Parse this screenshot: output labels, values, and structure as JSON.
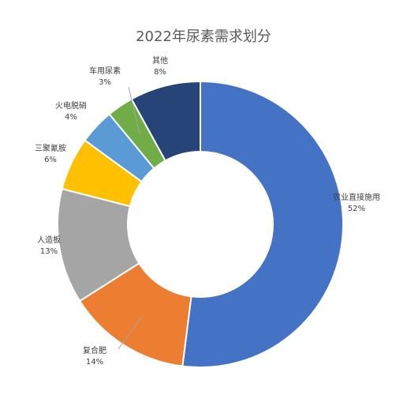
{
  "chart_data": {
    "type": "pie",
    "title": "2022年尿素需求划分",
    "donut": true,
    "slices": [
      {
        "label": "农业直接施用",
        "value": 52,
        "value_label": "52%",
        "color": "#4472C4"
      },
      {
        "label": "复合肥",
        "value": 14,
        "value_label": "14%",
        "color": "#ED7D31"
      },
      {
        "label": "人造板",
        "value": 13,
        "value_label": "13%",
        "color": "#A5A5A5"
      },
      {
        "label": "三聚氰胺",
        "value": 6,
        "value_label": "6%",
        "color": "#FFC000"
      },
      {
        "label": "火电脱硝",
        "value": 4,
        "value_label": "4%",
        "color": "#5B9BD5"
      },
      {
        "label": "车用尿素",
        "value": 3,
        "value_label": "3%",
        "color": "#70AD47"
      },
      {
        "label": "其他",
        "value": 8,
        "value_label": "8%",
        "color": "#264478"
      }
    ]
  }
}
